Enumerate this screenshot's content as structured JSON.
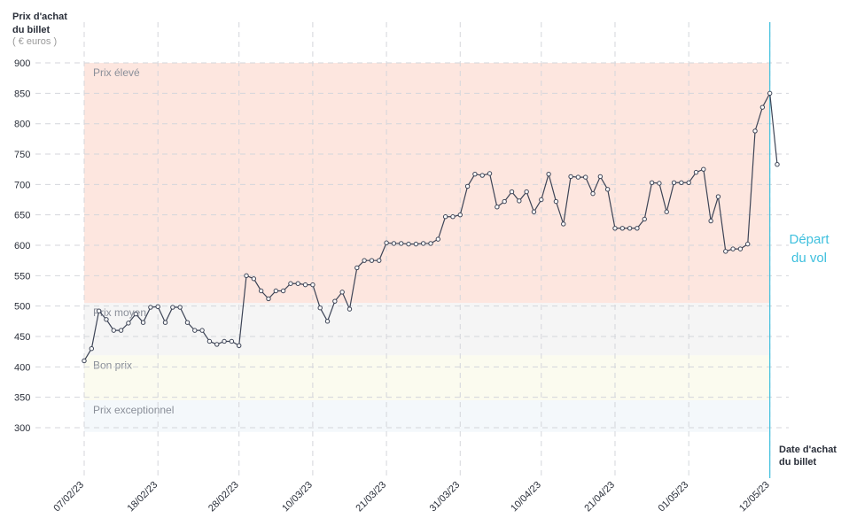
{
  "chart_data": {
    "type": "line",
    "y_title": [
      "Prix d'achat",
      "du billet"
    ],
    "y_unit": "( € euros )",
    "x_title": [
      "Date d'achat",
      "du billet"
    ],
    "categories": [
      "07/02/23",
      null,
      null,
      null,
      null,
      null,
      null,
      null,
      null,
      null,
      "18/02/23",
      null,
      null,
      null,
      null,
      null,
      null,
      null,
      null,
      null,
      null,
      "28/02/23",
      null,
      null,
      null,
      null,
      null,
      null,
      null,
      null,
      null,
      "10/03/23",
      null,
      null,
      null,
      null,
      null,
      null,
      null,
      null,
      null,
      "21/03/23",
      null,
      null,
      null,
      null,
      null,
      null,
      null,
      null,
      null,
      "31/03/23",
      null,
      null,
      null,
      null,
      null,
      null,
      null,
      null,
      null,
      null,
      "10/04/23",
      null,
      null,
      null,
      null,
      null,
      null,
      null,
      null,
      null,
      "21/04/23",
      null,
      null,
      null,
      null,
      null,
      null,
      null,
      null,
      null,
      "01/05/23",
      null,
      null,
      null,
      null,
      null,
      null,
      null,
      null,
      null,
      null,
      "12/05/23",
      null
    ],
    "series": [
      {
        "name": "Prix",
        "color": "#3d4456",
        "values": [
          410,
          430,
          492,
          478,
          460,
          460,
          472,
          487,
          473,
          498,
          499,
          473,
          498,
          498,
          473,
          460,
          460,
          442,
          437,
          442,
          442,
          435,
          550,
          545,
          525,
          512,
          525,
          525,
          537,
          537,
          535,
          535,
          497,
          475,
          508,
          523,
          495,
          563,
          575,
          575,
          575,
          604,
          603,
          603,
          602,
          602,
          603,
          603,
          610,
          647,
          647,
          650,
          697,
          717,
          715,
          718,
          663,
          672,
          688,
          673,
          688,
          655,
          675,
          717,
          672,
          635,
          713,
          712,
          712,
          685,
          713,
          692,
          628,
          628,
          628,
          628,
          643,
          703,
          702,
          655,
          703,
          703,
          703,
          720,
          725,
          640,
          680,
          590,
          594,
          594,
          602,
          788,
          827,
          850,
          733
        ]
      }
    ],
    "ylim": [
      220,
      920
    ],
    "yticks": [
      300,
      350,
      400,
      450,
      500,
      550,
      600,
      650,
      700,
      750,
      800,
      850,
      900
    ],
    "grid": true,
    "zones": [
      {
        "label": "Prix élevé",
        "from": 505,
        "to": 900,
        "color": "#fde6df"
      },
      {
        "label": "Prix moyen",
        "from": 419,
        "to": 505,
        "color": "#f5f5f5"
      },
      {
        "label": "Bon prix",
        "from": 345,
        "to": 419,
        "color": "#fbfbef"
      },
      {
        "label": "Prix exceptionnel",
        "from": 293,
        "to": 345,
        "color": "#f4f8fb"
      }
    ],
    "departure": {
      "category": 93,
      "label": [
        "Départ",
        "du vol"
      ],
      "color": "#3fc0de"
    }
  }
}
